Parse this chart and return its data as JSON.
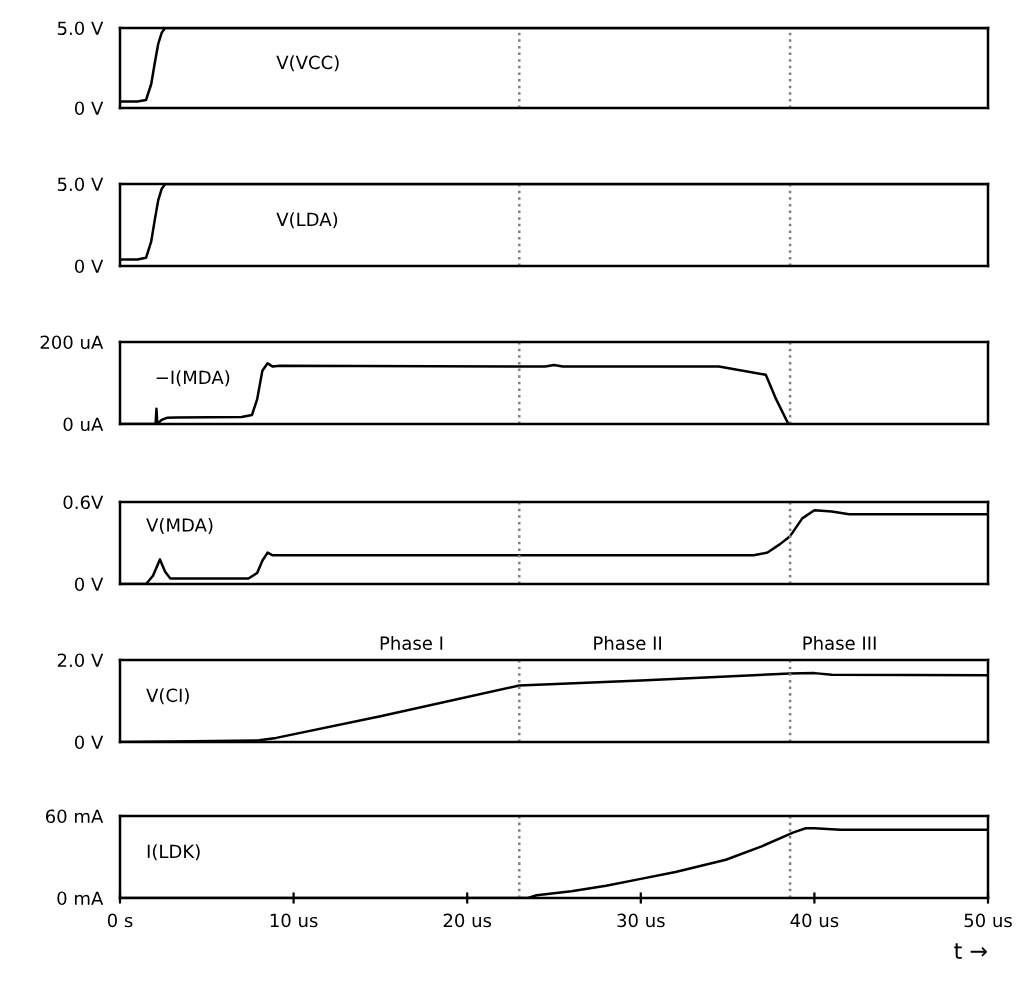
{
  "chart_data": [
    {
      "type": "line",
      "xlim": [
        0,
        50
      ],
      "ylim": [
        0,
        5
      ],
      "yticks": [
        {
          "value": 0,
          "label": "0 V"
        },
        {
          "value": 5,
          "label": "5.0 V"
        }
      ],
      "tick_labels": "y",
      "line_style": "solid",
      "ref_lines": [
        {
          "axis": "x",
          "value": 23.0,
          "color": "#808080",
          "line_style": "dotted"
        },
        {
          "axis": "x",
          "value": 38.6,
          "color": "#808080",
          "line_style": "dotted"
        }
      ],
      "series": [
        {
          "name": "V(VCC)",
          "color": "#000000",
          "x": [
            0,
            1.0,
            1.5,
            1.8,
            2.0,
            2.2,
            2.4,
            2.6,
            50
          ],
          "values": [
            0.4,
            0.4,
            0.5,
            1.5,
            2.8,
            4.0,
            4.7,
            5.0,
            5.0
          ]
        }
      ]
    },
    {
      "type": "line",
      "xlim": [
        0,
        50
      ],
      "ylim": [
        0,
        5
      ],
      "yticks": [
        {
          "value": 0,
          "label": "0 V"
        },
        {
          "value": 5,
          "label": "5.0 V"
        }
      ],
      "tick_labels": "y",
      "line_style": "solid",
      "ref_lines": [
        {
          "axis": "x",
          "value": 23.0,
          "color": "#808080",
          "line_style": "dotted"
        },
        {
          "axis": "x",
          "value": 38.6,
          "color": "#808080",
          "line_style": "dotted"
        }
      ],
      "series": [
        {
          "name": "V(LDA)",
          "color": "#000000",
          "x": [
            0,
            1.0,
            1.5,
            1.8,
            2.0,
            2.2,
            2.4,
            2.6,
            50
          ],
          "values": [
            0.4,
            0.4,
            0.5,
            1.5,
            2.8,
            4.0,
            4.7,
            5.0,
            5.0
          ]
        }
      ]
    },
    {
      "type": "line",
      "xlim": [
        0,
        50
      ],
      "ylim": [
        0,
        200
      ],
      "yticks": [
        {
          "value": 0,
          "label": "0 uA"
        },
        {
          "value": 200,
          "label": "200 uA"
        }
      ],
      "tick_labels": "y",
      "line_style": "solid",
      "ref_lines": [
        {
          "axis": "x",
          "value": 23.0,
          "color": "#808080",
          "line_style": "dotted"
        },
        {
          "axis": "x",
          "value": 38.6,
          "color": "#808080",
          "line_style": "dotted"
        }
      ],
      "series": [
        {
          "name": "−I(MDA)",
          "color": "#000000",
          "x": [
            0,
            2.05,
            2.1,
            2.15,
            2.4,
            2.7,
            3.2,
            7.0,
            7.6,
            7.9,
            8.2,
            8.5,
            8.8,
            9.2,
            24.5,
            25.0,
            25.5,
            34.5,
            37.2,
            37.8,
            38.5
          ],
          "values": [
            0,
            0,
            37,
            0,
            10,
            15,
            16,
            17,
            22,
            60,
            130,
            148,
            140,
            142,
            140,
            144,
            140,
            140,
            120,
            60,
            0
          ]
        }
      ]
    },
    {
      "type": "line",
      "xlim": [
        0,
        50
      ],
      "ylim": [
        0,
        0.6
      ],
      "yticks": [
        {
          "value": 0,
          "label": "0 V"
        },
        {
          "value": 0.6,
          "label": "0.6V"
        }
      ],
      "tick_labels": "y",
      "line_style": "solid",
      "ref_lines": [
        {
          "axis": "x",
          "value": 23.0,
          "color": "#808080",
          "line_style": "dotted"
        },
        {
          "axis": "x",
          "value": 38.6,
          "color": "#808080",
          "line_style": "dotted"
        }
      ],
      "series": [
        {
          "name": "V(MDA)",
          "color": "#000000",
          "x": [
            0,
            1.5,
            1.9,
            2.3,
            2.6,
            2.9,
            3.5,
            7.4,
            7.9,
            8.2,
            8.5,
            8.8,
            9.2,
            36.5,
            37.3,
            38.0,
            38.6,
            39.3,
            40.0,
            41.0,
            42.0,
            50
          ],
          "values": [
            0,
            0,
            0.06,
            0.18,
            0.09,
            0.04,
            0.04,
            0.04,
            0.08,
            0.17,
            0.23,
            0.21,
            0.21,
            0.21,
            0.23,
            0.29,
            0.35,
            0.48,
            0.54,
            0.53,
            0.51,
            0.51
          ]
        }
      ]
    },
    {
      "type": "line",
      "xlim": [
        0,
        50
      ],
      "ylim": [
        0,
        2
      ],
      "yticks": [
        {
          "value": 0,
          "label": "0 V"
        },
        {
          "value": 2,
          "label": "2.0 V"
        }
      ],
      "tick_labels": "y",
      "line_style": "solid",
      "ref_lines": [
        {
          "axis": "x",
          "value": 23.0,
          "color": "#808080",
          "line_style": "dotted"
        },
        {
          "axis": "x",
          "value": 38.6,
          "color": "#808080",
          "line_style": "dotted"
        }
      ],
      "annotations": [
        "Phase I",
        "Phase II",
        "Phase III"
      ],
      "series": [
        {
          "name": "V(CI)",
          "color": "#000000",
          "x": [
            0,
            3,
            8,
            9,
            15,
            23,
            30,
            38.6,
            40,
            41,
            50
          ],
          "values": [
            0,
            0.01,
            0.04,
            0.1,
            0.63,
            1.38,
            1.5,
            1.67,
            1.68,
            1.64,
            1.63
          ]
        }
      ]
    },
    {
      "type": "line",
      "xlim": [
        0,
        50
      ],
      "xticks": [
        {
          "value": 0,
          "label": "0 s"
        },
        {
          "value": 10,
          "label": "10 us"
        },
        {
          "value": 20,
          "label": "20 us"
        },
        {
          "value": 30,
          "label": "30 us"
        },
        {
          "value": 40,
          "label": "40 us"
        },
        {
          "value": 50,
          "label": "50 us"
        }
      ],
      "ylim": [
        0,
        60
      ],
      "yticks": [
        {
          "value": 0,
          "label": "0 mA"
        },
        {
          "value": 60,
          "label": "60 mA"
        }
      ],
      "xlabel": "t →",
      "line_style": "solid",
      "ref_lines": [
        {
          "axis": "x",
          "value": 23.0,
          "color": "#808080",
          "line_style": "dotted"
        },
        {
          "axis": "x",
          "value": 38.6,
          "color": "#808080",
          "line_style": "dotted"
        }
      ],
      "series": [
        {
          "name": "I(LDK)",
          "color": "#000000",
          "x": [
            0,
            23.5,
            24.0,
            26,
            28,
            30,
            32,
            34.9,
            37,
            38.8,
            39.5,
            40.0,
            41.5,
            50
          ],
          "values": [
            0,
            0,
            2,
            5,
            9,
            14,
            19,
            28,
            38,
            48,
            51,
            51,
            50,
            50
          ]
        }
      ]
    }
  ]
}
